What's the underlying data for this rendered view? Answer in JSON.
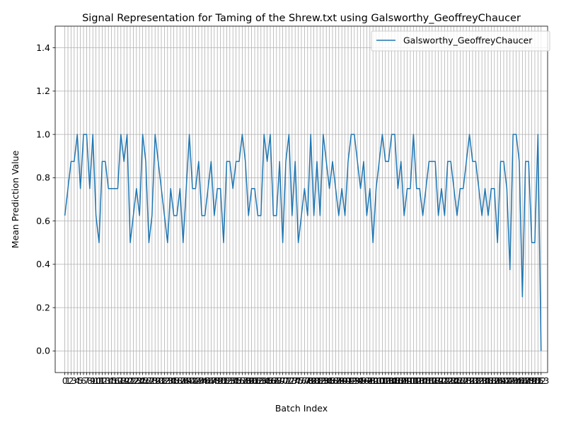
{
  "chart_data": {
    "type": "line",
    "title": "Signal Representation for Taming of the Shrew.txt using Galsworthy_GeoffreyChaucer",
    "xlabel": "Batch Index",
    "ylabel": "Mean Prediction Value",
    "xlim": [
      -3.1,
      155.1
    ],
    "ylim": [
      -0.1,
      1.5
    ],
    "yticks": [
      0.0,
      0.2,
      0.4,
      0.6,
      0.8,
      1.0,
      1.2,
      1.4
    ],
    "grid": true,
    "legend_position": "upper right",
    "series": [
      {
        "name": "Galsworthy_GeoffreyChaucer",
        "color": "#1f77b4",
        "values": [
          0.625,
          0.75,
          0.875,
          0.875,
          1.0,
          0.75,
          1.0,
          1.0,
          0.75,
          1.0,
          0.625,
          0.5,
          0.875,
          0.875,
          0.75,
          0.75,
          0.75,
          0.75,
          1.0,
          0.875,
          1.0,
          0.5,
          0.625,
          0.75,
          0.625,
          1.0,
          0.875,
          0.5,
          0.625,
          1.0,
          0.875,
          0.75,
          0.625,
          0.5,
          0.75,
          0.625,
          0.625,
          0.75,
          0.5,
          0.75,
          1.0,
          0.75,
          0.75,
          0.875,
          0.625,
          0.625,
          0.75,
          0.875,
          0.625,
          0.75,
          0.75,
          0.5,
          0.875,
          0.875,
          0.75,
          0.875,
          0.875,
          1.0,
          0.875,
          0.625,
          0.75,
          0.75,
          0.625,
          0.625,
          1.0,
          0.875,
          1.0,
          0.625,
          0.625,
          0.875,
          0.5,
          0.875,
          1.0,
          0.625,
          0.875,
          0.5,
          0.625,
          0.75,
          0.625,
          1.0,
          0.625,
          0.875,
          0.625,
          1.0,
          0.875,
          0.75,
          0.875,
          0.75,
          0.625,
          0.75,
          0.625,
          0.875,
          1.0,
          1.0,
          0.875,
          0.75,
          0.875,
          0.625,
          0.75,
          0.5,
          0.75,
          0.875,
          1.0,
          0.875,
          0.875,
          1.0,
          1.0,
          0.75,
          0.875,
          0.625,
          0.75,
          0.75,
          1.0,
          0.75,
          0.75,
          0.625,
          0.75,
          0.875,
          0.875,
          0.875,
          0.625,
          0.75,
          0.625,
          0.875,
          0.875,
          0.75,
          0.625,
          0.75,
          0.75,
          0.875,
          1.0,
          0.875,
          0.875,
          0.75,
          0.625,
          0.75,
          0.625,
          0.75,
          0.75,
          0.5,
          0.875,
          0.875,
          0.75,
          0.375,
          1.0,
          1.0,
          0.875,
          0.25,
          0.875,
          0.875,
          0.5,
          0.5,
          1.0,
          0.0
        ]
      }
    ]
  }
}
